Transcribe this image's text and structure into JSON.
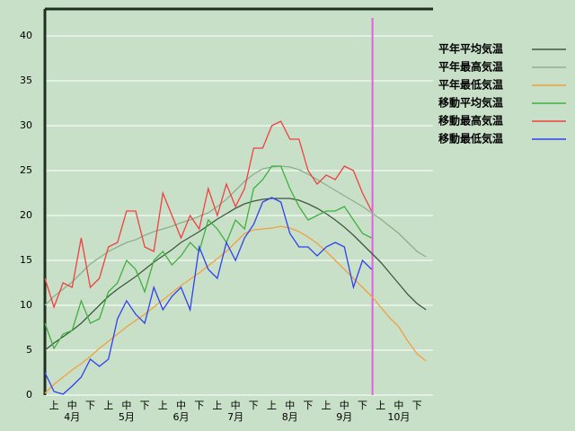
{
  "chart_data": {
    "type": "line",
    "categories": [
      null,
      "上",
      null,
      "中",
      null,
      "下",
      null,
      "上",
      null,
      "中",
      null,
      "下",
      null,
      "上",
      null,
      "中",
      null,
      "下",
      null,
      "上",
      null,
      "中",
      null,
      "下",
      null,
      "上",
      null,
      "中",
      null,
      "下",
      null,
      "上",
      null,
      "中",
      null,
      "下",
      null,
      "上",
      null,
      "中",
      null,
      "下",
      null
    ],
    "months": [
      "4月",
      "5月",
      "6月",
      "7月",
      "8月",
      "9月",
      "10月"
    ],
    "ylim": [
      0,
      43
    ],
    "yticks": [
      0,
      5,
      10,
      15,
      20,
      25,
      30,
      35,
      40
    ],
    "grid": true,
    "legend": "right",
    "series": [
      {
        "name": "平年平均気温",
        "color": "#3c5a3c",
        "values": [
          5.0,
          5.8,
          6.5,
          7.2,
          8.0,
          9.0,
          10.0,
          11.0,
          11.8,
          12.5,
          13.2,
          14.0,
          14.8,
          15.5,
          16.2,
          17.0,
          17.6,
          18.2,
          18.9,
          19.6,
          20.2,
          20.8,
          21.3,
          21.6,
          21.8,
          21.9,
          21.9,
          21.9,
          21.7,
          21.3,
          20.8,
          20.2,
          19.5,
          18.7,
          17.8,
          16.8,
          15.8,
          14.8,
          13.6,
          12.4,
          11.2,
          10.2,
          9.5
        ]
      },
      {
        "name": "平年最高気温",
        "color": "#8eae8e",
        "values": [
          10,
          11,
          11.8,
          12.6,
          13.6,
          14.6,
          15.3,
          16,
          16.5,
          17,
          17.3,
          17.8,
          18.2,
          18.5,
          18.8,
          19.2,
          19.5,
          19.9,
          20.3,
          21,
          21.8,
          22.8,
          23.8,
          24.6,
          25.2,
          25.4,
          25.5,
          25.4,
          25.1,
          24.6,
          24.0,
          23.4,
          22.8,
          22.2,
          21.6,
          21.0,
          20.3,
          19.6,
          18.8,
          18.0,
          17.0,
          16.0,
          15.4
        ]
      },
      {
        "name": "平年最低気温",
        "color": "#f0a040",
        "values": [
          0.2,
          1.2,
          2.0,
          2.8,
          3.5,
          4.3,
          5.2,
          6.0,
          6.8,
          7.6,
          8.3,
          9.0,
          9.8,
          10.6,
          11.4,
          12.2,
          12.9,
          13.6,
          14.4,
          15.2,
          16.0,
          17.0,
          18.0,
          18.4,
          18.5,
          18.6,
          18.8,
          18.6,
          18.2,
          17.6,
          16.9,
          16.0,
          15.0,
          14.0,
          13.0,
          12.0,
          11.0,
          9.8,
          8.6,
          7.6,
          6.0,
          4.6,
          3.8
        ]
      },
      {
        "name": "移動平均気温",
        "color": "#40b040",
        "values": [
          8,
          5.2,
          6.8,
          7.2,
          10.5,
          8.0,
          8.5,
          11.5,
          12.5,
          15.0,
          14.0,
          11.5,
          15.0,
          16.0,
          14.5,
          15.5,
          17.0,
          16.0,
          19.5,
          18.5,
          17.0,
          19.5,
          18.5,
          23.0,
          24.0,
          25.5,
          25.5,
          23.0,
          21.0,
          19.5,
          20.0,
          20.5,
          20.5,
          21.0,
          19.5,
          18.0,
          17.5,
          null,
          null,
          null,
          null,
          null,
          null
        ]
      },
      {
        "name": "移動最高気温",
        "color": "#f04040",
        "values": [
          13,
          9.8,
          12.5,
          12.0,
          17.5,
          12.0,
          13.0,
          16.5,
          17.0,
          20.5,
          20.5,
          16.5,
          16.0,
          22.5,
          20.0,
          17.5,
          20.0,
          18.5,
          23.0,
          20.0,
          23.5,
          21.0,
          23.0,
          27.5,
          27.5,
          30.0,
          30.5,
          28.5,
          28.5,
          25.0,
          23.5,
          24.5,
          24.0,
          25.5,
          25.0,
          22.5,
          20.5,
          null,
          null,
          null,
          null,
          null,
          null
        ]
      },
      {
        "name": "移動最低気温",
        "color": "#3040f0",
        "values": [
          2.5,
          0.4,
          0.1,
          1.0,
          2.0,
          4.0,
          3.2,
          4.0,
          8.5,
          10.5,
          9.0,
          8.0,
          12.0,
          9.5,
          11.0,
          12.0,
          9.5,
          16.5,
          14.0,
          13.0,
          17.0,
          15.0,
          17.5,
          19.0,
          21.5,
          22.0,
          21.5,
          18.0,
          16.5,
          16.5,
          15.5,
          16.5,
          17.0,
          16.5,
          12.0,
          15.0,
          14.0,
          null,
          null,
          null,
          null,
          null,
          null
        ]
      }
    ]
  }
}
